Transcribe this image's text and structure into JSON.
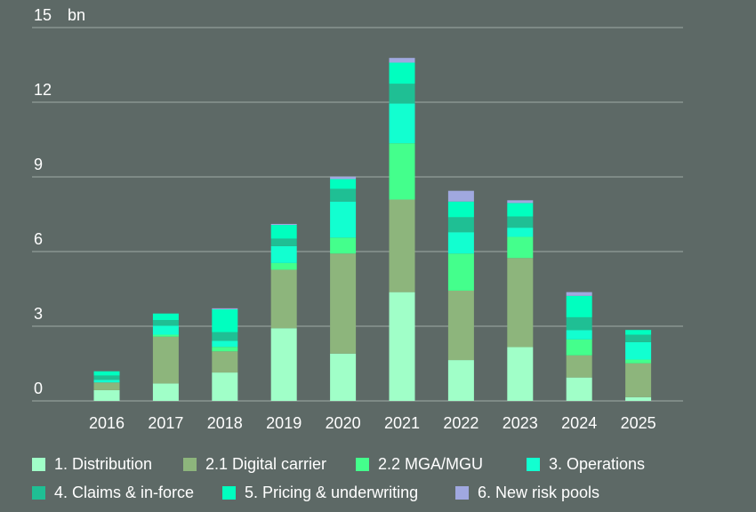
{
  "chart_data": {
    "type": "bar",
    "stacked": true,
    "unit_label": "bn",
    "ylim": [
      0,
      15
    ],
    "yticks": [
      0,
      3,
      6,
      9,
      12,
      15
    ],
    "grid": true,
    "legend_placement": "bottom",
    "categories": [
      "2016",
      "2017",
      "2018",
      "2019",
      "2020",
      "2021",
      "2022",
      "2023",
      "2024",
      "2025"
    ],
    "series": [
      {
        "name": "1. Distribution",
        "color": "#a0ffc8",
        "values": [
          0.43,
          0.7,
          1.14,
          2.92,
          1.9,
          4.37,
          1.64,
          2.16,
          0.94,
          0.15
        ]
      },
      {
        "name": "2.1 Digital carrier",
        "color": "#8db57c",
        "values": [
          0.31,
          1.88,
          0.85,
          2.35,
          4.02,
          3.72,
          2.79,
          3.58,
          0.89,
          1.36
        ]
      },
      {
        "name": "2.2 MGA/MGU",
        "color": "#44ff8c",
        "values": [
          0.0,
          0.08,
          0.18,
          0.27,
          0.64,
          2.26,
          1.49,
          0.85,
          0.64,
          0.15
        ]
      },
      {
        "name": "3. Operations",
        "color": "#12ffd0",
        "values": [
          0.11,
          0.36,
          0.24,
          0.68,
          1.45,
          1.6,
          0.86,
          0.37,
          0.37,
          0.7
        ]
      },
      {
        "name": "4. Claims & in-force",
        "color": "#1fbf94",
        "values": [
          0.17,
          0.23,
          0.35,
          0.3,
          0.51,
          0.79,
          0.6,
          0.45,
          0.52,
          0.3
        ]
      },
      {
        "name": "5. Pricing & underwriting",
        "color": "#00ffbf",
        "values": [
          0.17,
          0.26,
          0.92,
          0.55,
          0.39,
          0.85,
          0.63,
          0.54,
          0.86,
          0.19
        ]
      },
      {
        "name": "6. New risk pools",
        "color": "#a0a8e0",
        "values": [
          0.0,
          0.0,
          0.04,
          0.04,
          0.1,
          0.19,
          0.43,
          0.11,
          0.15,
          0.0
        ]
      }
    ]
  }
}
